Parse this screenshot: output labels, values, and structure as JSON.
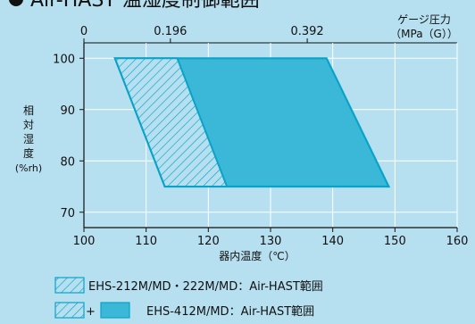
{
  "chart_data": {
    "type": "area",
    "title": "Air-HAST 温湿度制御範囲",
    "xlabel": "器内温度（℃）",
    "ylabel": [
      "相",
      "対",
      "湿",
      "度",
      "(%rh)"
    ],
    "x_ticks": [
      100,
      110,
      120,
      130,
      140,
      150,
      160
    ],
    "y_ticks": [
      70,
      80,
      90,
      100
    ],
    "xlim": [
      100,
      160
    ],
    "ylim": [
      67,
      103
    ],
    "top_axis": {
      "label_line1": "ゲージ圧力",
      "label_line2": "（MPa（G））",
      "ticks": [
        {
          "label": "0",
          "at_temp": 100
        },
        {
          "label": "0.196",
          "at_temp": 113.9
        },
        {
          "label": "0.392",
          "at_temp": 135.9
        }
      ]
    },
    "grid": true,
    "series": [
      {
        "name": "EHS-212M/MD・222M/MD：Air-HAST範囲",
        "pattern": "hatched",
        "polygon": [
          [
            105,
            100
          ],
          [
            115,
            100
          ],
          [
            123,
            75
          ],
          [
            113,
            75
          ]
        ]
      },
      {
        "name": "EHS-412M/MD：Air-HAST範囲",
        "pattern": "hatched+filled",
        "polygon": [
          [
            105,
            100
          ],
          [
            139,
            100
          ],
          [
            149,
            75
          ],
          [
            113,
            75
          ]
        ]
      }
    ],
    "legend": {
      "plus": "+",
      "entries": [
        "EHS-212M/MD・222M/MD：Air-HAST範囲",
        "EHS-412M/MD：Air-HAST範囲"
      ]
    }
  },
  "colors": {
    "background": "#b6dff0",
    "region_outline": "#0aa3c8",
    "region_fill": "#3bb8d8",
    "grid": "#ffffff",
    "axis": "#111111",
    "bullet": "#111111"
  }
}
